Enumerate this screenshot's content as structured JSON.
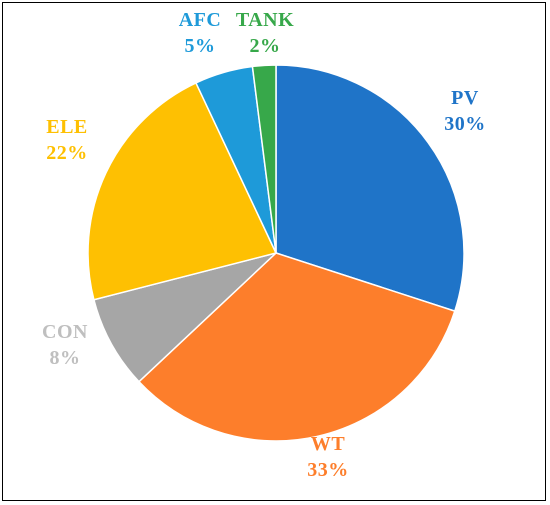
{
  "chart_data": {
    "type": "pie",
    "start_angle_deg": 0,
    "direction": "clockwise",
    "slices": [
      {
        "label": "PV",
        "percent_label": "30%",
        "value": 30,
        "color": "#1F74C8"
      },
      {
        "label": "WT",
        "percent_label": "33%",
        "value": 33,
        "color": "#FD7E2B"
      },
      {
        "label": "CON",
        "percent_label": "8%",
        "value": 8,
        "color": "#A6A6A6"
      },
      {
        "label": "ELE",
        "percent_label": "22%",
        "value": 22,
        "color": "#FEC002"
      },
      {
        "label": "AFC",
        "percent_label": "5%",
        "value": 5,
        "color": "#1E9AD9"
      },
      {
        "label": "TANK",
        "percent_label": "2%",
        "value": 2,
        "color": "#37A84A"
      }
    ],
    "label_colors": {
      "PV": "#1F74C8",
      "WT": "#FD7E2B",
      "CON": "#BFBFBF",
      "ELE": "#FEC002",
      "AFC": "#1E9AD9",
      "TANK": "#37A84A"
    }
  }
}
